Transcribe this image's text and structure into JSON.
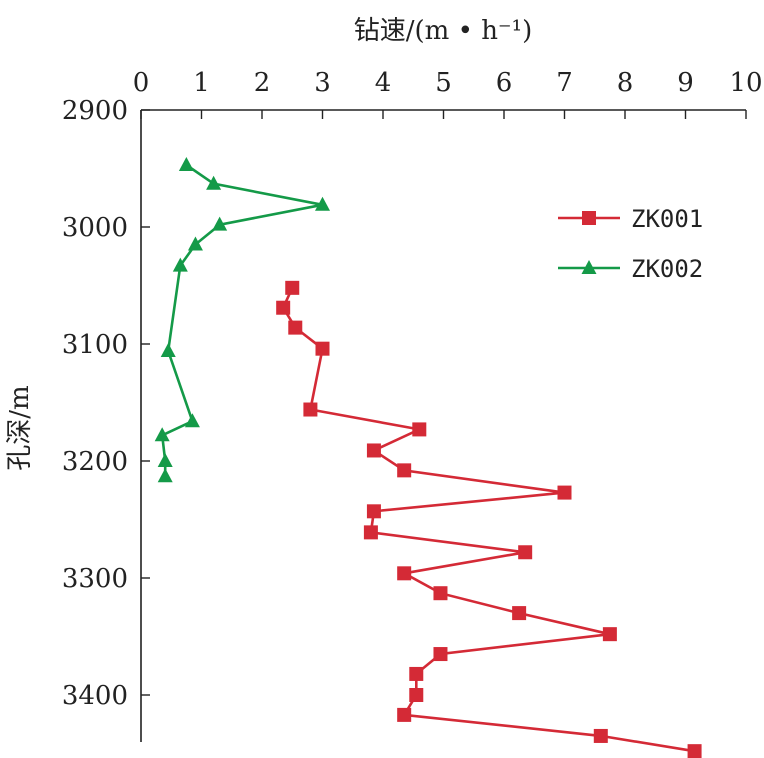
{
  "chart_data": {
    "type": "line",
    "xlabel": "钻速/(m • h⁻¹)",
    "ylabel": "孔深/m",
    "xlim": [
      0,
      10
    ],
    "ylim": [
      2900,
      3450
    ],
    "x_ticks": [
      "0",
      "1",
      "2",
      "3",
      "4",
      "5",
      "6",
      "7",
      "8",
      "9",
      "10"
    ],
    "y_ticks": [
      "2900",
      "3000",
      "3100",
      "3200",
      "3300",
      "3400"
    ],
    "x_axis_position": "top",
    "y_axis_inverted": true,
    "grid": false,
    "legend_position": "upper-right",
    "series": [
      {
        "name": "ZK001",
        "color": "#d42a36",
        "marker": "square",
        "points": [
          [
            2.5,
            3052
          ],
          [
            2.35,
            3069
          ],
          [
            2.55,
            3086
          ],
          [
            3.0,
            3104
          ],
          [
            2.8,
            3156
          ],
          [
            4.6,
            3173
          ],
          [
            3.85,
            3191
          ],
          [
            4.35,
            3208
          ],
          [
            7.0,
            3227
          ],
          [
            3.85,
            3243
          ],
          [
            3.8,
            3261
          ],
          [
            6.35,
            3278
          ],
          [
            4.35,
            3296
          ],
          [
            4.95,
            3313
          ],
          [
            6.25,
            3330
          ],
          [
            7.75,
            3348
          ],
          [
            4.95,
            3365
          ],
          [
            4.55,
            3382
          ],
          [
            4.55,
            3400
          ],
          [
            4.35,
            3417
          ],
          [
            7.6,
            3435
          ],
          [
            9.15,
            3448
          ]
        ]
      },
      {
        "name": "ZK002",
        "color": "#149a48",
        "marker": "triangle",
        "points": [
          [
            0.75,
            2947
          ],
          [
            1.2,
            2963
          ],
          [
            3.0,
            2981
          ],
          [
            1.3,
            2998
          ],
          [
            0.9,
            3015
          ],
          [
            0.65,
            3033
          ],
          [
            0.45,
            3106
          ],
          [
            0.85,
            3166
          ],
          [
            0.35,
            3178
          ],
          [
            0.4,
            3200
          ],
          [
            0.4,
            3213
          ]
        ]
      }
    ]
  }
}
